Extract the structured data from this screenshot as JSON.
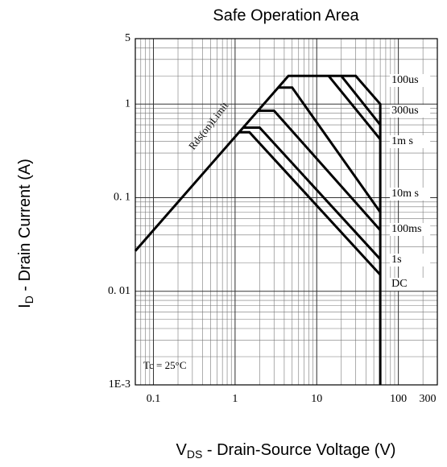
{
  "chart_data": {
    "type": "line",
    "title": "Safe Operation Area",
    "x_label": {
      "main": "V",
      "sub": "DS",
      "rest": " - Drain-Source Voltage (V)"
    },
    "y_label": {
      "main": "I",
      "sub": "D",
      "rest": " - Drain Current (A)"
    },
    "annotations": [
      "Rds(on)Limit",
      "Tc = 25°C"
    ],
    "xscale": "log",
    "yscale": "log",
    "grid": true,
    "xlim": [
      0.06,
      300
    ],
    "xticks": [
      0.1,
      1,
      10,
      100,
      300
    ],
    "ylim": [
      0.001,
      5
    ],
    "yticks": [
      {
        "value": 0.001,
        "label": "1E-3"
      },
      {
        "value": 0.01,
        "label": "0. 01"
      },
      {
        "value": 0.1,
        "label": "0. 1"
      },
      1,
      5
    ],
    "series": [
      {
        "name": "100us",
        "color": "#000000",
        "x": [
          0.06,
          4.5,
          30,
          60,
          60
        ],
        "values": [
          0.027,
          2,
          2,
          1,
          0.001
        ]
      },
      {
        "name": "300us",
        "color": "#000000",
        "x": [
          20,
          60
        ],
        "values": [
          2,
          0.6
        ]
      },
      {
        "name": "1m s",
        "color": "#000000",
        "x": [
          14,
          60
        ],
        "values": [
          2,
          0.42
        ]
      },
      {
        "name": "10m s",
        "color": "#000000",
        "x": [
          3.33,
          5,
          60
        ],
        "values": [
          1.5,
          1.5,
          0.07
        ]
      },
      {
        "name": "100ms",
        "color": "#000000",
        "x": [
          1.9,
          3,
          60
        ],
        "values": [
          0.85,
          0.85,
          0.045
        ]
      },
      {
        "name": "1s",
        "color": "#000000",
        "x": [
          1.25,
          2,
          60
        ],
        "values": [
          0.56,
          0.56,
          0.022
        ]
      },
      {
        "name": "DC",
        "color": "#000000",
        "x": [
          1.1,
          1.5,
          60
        ],
        "values": [
          0.5,
          0.5,
          0.015
        ]
      }
    ]
  }
}
